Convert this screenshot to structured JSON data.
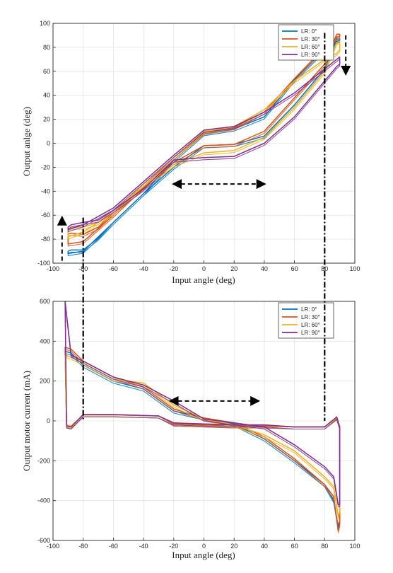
{
  "chart_data": [
    {
      "type": "line",
      "xlabel": "Input angle (deg)",
      "ylabel": "Output anlge (deg)",
      "xlim": [
        -100,
        100
      ],
      "ylim": [
        -100,
        100
      ],
      "xticks": [
        "-100",
        "-80",
        "-60",
        "-40",
        "-20",
        "0",
        "20",
        "40",
        "60",
        "80",
        "100"
      ],
      "yticks": [
        "-100",
        "-80",
        "-60",
        "-40",
        "-20",
        "0",
        "20",
        "40",
        "60",
        "80",
        "100"
      ],
      "grid": true,
      "legend": "top-right",
      "series": [
        {
          "name": "LR: 0°",
          "color": "#0072BD",
          "loop": [
            [
              0,
              -2
            ],
            [
              20,
              -1
            ],
            [
              40,
              6
            ],
            [
              60,
              32
            ],
            [
              80,
              62
            ],
            [
              88,
              87
            ],
            [
              90,
              87
            ],
            [
              90,
              86
            ],
            [
              88,
              85
            ],
            [
              80,
              78
            ],
            [
              60,
              53
            ],
            [
              40,
              22
            ],
            [
              20,
              12
            ],
            [
              0,
              8
            ],
            [
              -20,
              -14
            ],
            [
              -40,
              -42
            ],
            [
              -60,
              -66
            ],
            [
              -80,
              -90
            ],
            [
              -90,
              -92
            ],
            [
              -90,
              -90
            ],
            [
              -88,
              -89
            ],
            [
              -80,
              -89
            ],
            [
              -70,
              -79
            ],
            [
              -60,
              -66
            ],
            [
              -40,
              -42
            ],
            [
              -20,
              -20
            ],
            [
              0,
              -2
            ]
          ]
        },
        {
          "name": "LR: 30°",
          "color": "#D95319",
          "loop": [
            [
              0,
              -2
            ],
            [
              20,
              -1
            ],
            [
              40,
              10
            ],
            [
              60,
              38
            ],
            [
              80,
              66
            ],
            [
              88,
              91
            ],
            [
              90,
              91
            ],
            [
              90,
              89
            ],
            [
              88,
              88
            ],
            [
              80,
              80
            ],
            [
              60,
              54
            ],
            [
              40,
              26
            ],
            [
              20,
              13
            ],
            [
              0,
              9
            ],
            [
              -20,
              -12
            ],
            [
              -40,
              -36
            ],
            [
              -60,
              -60
            ],
            [
              -80,
              -82
            ],
            [
              -90,
              -84
            ],
            [
              -90,
              -76
            ],
            [
              -88,
              -75
            ],
            [
              -80,
              -76
            ],
            [
              -70,
              -70
            ],
            [
              -60,
              -58
            ],
            [
              -40,
              -37
            ],
            [
              -20,
              -16
            ],
            [
              0,
              -2
            ]
          ]
        },
        {
          "name": "LR: 60°",
          "color": "#EDB120",
          "loop": [
            [
              0,
              -8
            ],
            [
              20,
              -6
            ],
            [
              40,
              5
            ],
            [
              60,
              30
            ],
            [
              80,
              60
            ],
            [
              88,
              84
            ],
            [
              90,
              85
            ],
            [
              90,
              78
            ],
            [
              88,
              75
            ],
            [
              80,
              70
            ],
            [
              60,
              52
            ],
            [
              40,
              28
            ],
            [
              20,
              14
            ],
            [
              0,
              10
            ],
            [
              -20,
              -12
            ],
            [
              -40,
              -34
            ],
            [
              -60,
              -58
            ],
            [
              -80,
              -74
            ],
            [
              -90,
              -78
            ],
            [
              -90,
              -72
            ],
            [
              -88,
              -70
            ],
            [
              -80,
              -70
            ],
            [
              -70,
              -66
            ],
            [
              -60,
              -56
            ],
            [
              -40,
              -36
            ],
            [
              -20,
              -18
            ],
            [
              0,
              -8
            ]
          ]
        },
        {
          "name": "LR: 90°",
          "color": "#7E2F8E",
          "loop": [
            [
              0,
              -12
            ],
            [
              20,
              -11
            ],
            [
              40,
              0
            ],
            [
              60,
              22
            ],
            [
              80,
              52
            ],
            [
              88,
              64
            ],
            [
              90,
              66
            ],
            [
              90,
              72
            ],
            [
              88,
              70
            ],
            [
              80,
              62
            ],
            [
              60,
              42
            ],
            [
              40,
              26
            ],
            [
              20,
              14
            ],
            [
              0,
              11
            ],
            [
              -20,
              -10
            ],
            [
              -40,
              -32
            ],
            [
              -60,
              -54
            ],
            [
              -80,
              -68
            ],
            [
              -90,
              -72
            ],
            [
              -90,
              -70
            ],
            [
              -88,
              -68
            ],
            [
              -80,
              -66
            ],
            [
              -70,
              -64
            ],
            [
              -60,
              -56
            ],
            [
              -40,
              -38
            ],
            [
              -20,
              -14
            ],
            [
              0,
              -12
            ]
          ]
        }
      ],
      "annotations": [
        {
          "type": "double-arrow",
          "x": [
            -20,
            40
          ],
          "y": -34
        },
        {
          "type": "arrow-up",
          "x": -94,
          "y": [
            -98,
            -60
          ]
        },
        {
          "type": "arrow-down",
          "x": 94,
          "y": [
            90,
            56
          ]
        }
      ],
      "reference_lines": [
        -80,
        80
      ]
    },
    {
      "type": "line",
      "xlabel": "Input angle (deg)",
      "ylabel": "Output motor current (mA)",
      "xlim": [
        -100,
        100
      ],
      "ylim": [
        -600,
        600
      ],
      "xticks": [
        "-100",
        "-80",
        "-60",
        "-40",
        "-20",
        "0",
        "20",
        "40",
        "60",
        "80",
        "100"
      ],
      "yticks": [
        "-600",
        "-400",
        "-200",
        "0",
        "200",
        "400",
        "600"
      ],
      "grid": true,
      "legend": "top-right",
      "series": [
        {
          "name": "LR: 0°",
          "color": "#0072BD",
          "loop": [
            [
              0,
              15
            ],
            [
              20,
              -15
            ],
            [
              40,
              -90
            ],
            [
              60,
              -200
            ],
            [
              80,
              -320
            ],
            [
              86,
              -400
            ],
            [
              89,
              -530
            ],
            [
              90,
              -500
            ],
            [
              90,
              -30
            ],
            [
              88,
              15
            ],
            [
              80,
              -30
            ],
            [
              60,
              -30
            ],
            [
              40,
              -25
            ],
            [
              20,
              -25
            ],
            [
              0,
              -20
            ],
            [
              -20,
              -15
            ],
            [
              -30,
              25
            ],
            [
              -60,
              30
            ],
            [
              -80,
              30
            ],
            [
              -88,
              -30
            ],
            [
              -91,
              -20
            ],
            [
              -92,
              350
            ],
            [
              -88,
              340
            ],
            [
              -80,
              280
            ],
            [
              -60,
              200
            ],
            [
              -40,
              160
            ],
            [
              -20,
              50
            ],
            [
              0,
              15
            ]
          ]
        },
        {
          "name": "LR: 30°",
          "color": "#D95319",
          "loop": [
            [
              0,
              15
            ],
            [
              20,
              -10
            ],
            [
              40,
              -80
            ],
            [
              60,
              -190
            ],
            [
              80,
              -320
            ],
            [
              86,
              -380
            ],
            [
              89,
              -550
            ],
            [
              90,
              -520
            ],
            [
              90,
              -30
            ],
            [
              88,
              20
            ],
            [
              80,
              -30
            ],
            [
              60,
              -30
            ],
            [
              40,
              -25
            ],
            [
              20,
              -25
            ],
            [
              0,
              -20
            ],
            [
              -20,
              -15
            ],
            [
              -30,
              25
            ],
            [
              -60,
              32
            ],
            [
              -80,
              32
            ],
            [
              -88,
              -30
            ],
            [
              -91,
              -25
            ],
            [
              -92,
              370
            ],
            [
              -88,
              360
            ],
            [
              -80,
              300
            ],
            [
              -60,
              220
            ],
            [
              -40,
              170
            ],
            [
              -20,
              60
            ],
            [
              0,
              15
            ]
          ]
        },
        {
          "name": "LR: 60°",
          "color": "#EDB120",
          "loop": [
            [
              0,
              10
            ],
            [
              20,
              -20
            ],
            [
              40,
              -70
            ],
            [
              60,
              -150
            ],
            [
              80,
              -280
            ],
            [
              86,
              -330
            ],
            [
              89,
              -480
            ],
            [
              90,
              -450
            ],
            [
              90,
              -30
            ],
            [
              88,
              15
            ],
            [
              80,
              -30
            ],
            [
              60,
              -30
            ],
            [
              40,
              -20
            ],
            [
              20,
              -20
            ],
            [
              0,
              -15
            ],
            [
              -20,
              -10
            ],
            [
              -30,
              25
            ],
            [
              -60,
              30
            ],
            [
              -80,
              30
            ],
            [
              -88,
              -25
            ],
            [
              -91,
              -20
            ],
            [
              -92,
              330
            ],
            [
              -88,
              320
            ],
            [
              -80,
              290
            ],
            [
              -60,
              210
            ],
            [
              -40,
              190
            ],
            [
              -20,
              80
            ],
            [
              0,
              10
            ]
          ]
        },
        {
          "name": "LR: 90°",
          "color": "#7E2F8E",
          "loop": [
            [
              0,
              10
            ],
            [
              20,
              -10
            ],
            [
              40,
              -30
            ],
            [
              60,
              -120
            ],
            [
              80,
              -230
            ],
            [
              86,
              -280
            ],
            [
              89,
              -420
            ],
            [
              90,
              -420
            ],
            [
              90,
              -30
            ],
            [
              88,
              20
            ],
            [
              80,
              -30
            ],
            [
              60,
              -30
            ],
            [
              40,
              -20
            ],
            [
              20,
              -20
            ],
            [
              0,
              -15
            ],
            [
              -20,
              -10
            ],
            [
              -30,
              25
            ],
            [
              -60,
              32
            ],
            [
              -80,
              32
            ],
            [
              -88,
              -30
            ],
            [
              -91,
              -25
            ],
            [
              -92,
              600
            ],
            [
              -88,
              330
            ],
            [
              -80,
              300
            ],
            [
              -60,
              220
            ],
            [
              -40,
              180
            ],
            [
              -20,
              100
            ],
            [
              0,
              10
            ]
          ]
        }
      ],
      "annotations": [
        {
          "type": "double-arrow",
          "x": [
            -22,
            36
          ],
          "y": 100
        }
      ],
      "reference_lines": [
        -80,
        80
      ]
    }
  ]
}
